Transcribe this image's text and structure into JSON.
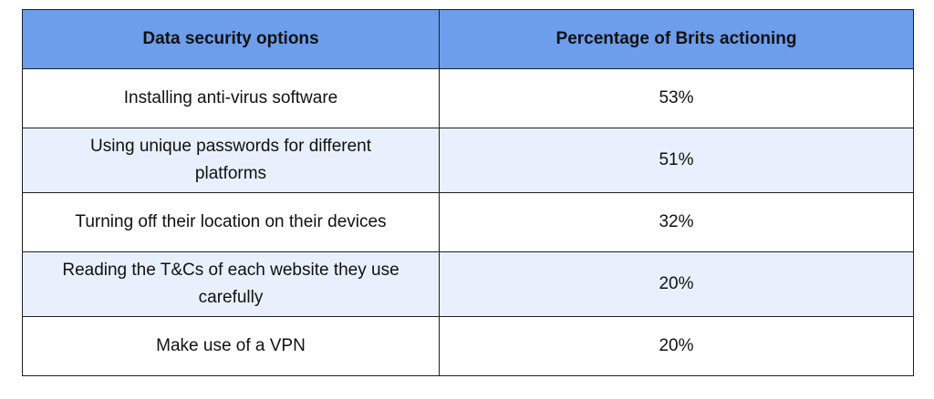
{
  "table": {
    "headers": [
      "Data security options",
      "Percentage of Brits actioning"
    ],
    "rows": [
      {
        "option": "Installing anti-virus software",
        "percentage": "53%"
      },
      {
        "option": "Using unique passwords for different platforms",
        "percentage": "51%"
      },
      {
        "option": "Turning off their location on their devices",
        "percentage": "32%"
      },
      {
        "option": "Reading the T&Cs of each website they use carefully",
        "percentage": "20%"
      },
      {
        "option": "Make use of a VPN",
        "percentage": "20%"
      }
    ],
    "colors": {
      "header_bg": "#6d9eeb",
      "alt_row_bg": "#e8f0fe",
      "row_bg": "#ffffff",
      "border": "#1f1f1f"
    }
  }
}
